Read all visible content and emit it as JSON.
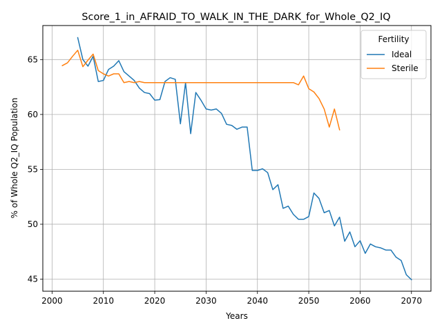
{
  "chart_data": {
    "type": "line",
    "title": "Score_1_in_AFRAID_TO_WALK_IN_THE_DARK_for_Whole_Q2_IQ",
    "xlabel": "Years",
    "ylabel": "% of Whole Q2_IQ Population",
    "xlim": [
      1998.2,
      2073.8
    ],
    "ylim": [
      43.9,
      68.1
    ],
    "xticks": [
      2000,
      2010,
      2020,
      2030,
      2040,
      2050,
      2060,
      2070
    ],
    "yticks": [
      45,
      50,
      55,
      60,
      65
    ],
    "grid": true,
    "legend": {
      "title": "Fertility",
      "placement": "top-right"
    },
    "series": [
      {
        "name": "Ideal",
        "color": "#1f77b4",
        "x": [
          2005,
          2006,
          2007,
          2008,
          2009,
          2010,
          2011,
          2012,
          2013,
          2014,
          2015,
          2016,
          2017,
          2018,
          2019,
          2020,
          2021,
          2022,
          2023,
          2024,
          2025,
          2026,
          2027,
          2028,
          2029,
          2030,
          2031,
          2032,
          2033,
          2034,
          2035,
          2036,
          2037,
          2038,
          2039,
          2040,
          2041,
          2042,
          2043,
          2044,
          2045,
          2046,
          2047,
          2048,
          2049,
          2050,
          2051,
          2052,
          2053,
          2054,
          2055,
          2056,
          2057,
          2058,
          2059,
          2060,
          2061,
          2062,
          2063,
          2064,
          2065,
          2066,
          2067,
          2068,
          2069,
          2070
        ],
        "values": [
          67.0,
          65.0,
          64.4,
          65.3,
          63.0,
          63.1,
          64.1,
          64.4,
          64.9,
          63.9,
          63.5,
          63.1,
          62.4,
          62.0,
          61.9,
          61.3,
          61.35,
          63.0,
          63.35,
          63.2,
          59.15,
          62.9,
          58.25,
          62.0,
          61.3,
          60.5,
          60.4,
          60.5,
          60.1,
          59.1,
          59.0,
          58.65,
          58.85,
          58.85,
          54.9,
          54.9,
          55.05,
          54.7,
          53.15,
          53.6,
          51.45,
          51.65,
          50.9,
          50.45,
          50.45,
          50.7,
          52.85,
          52.35,
          51.05,
          51.25,
          49.85,
          50.65,
          48.45,
          49.3,
          47.95,
          48.5,
          47.35,
          48.2,
          47.95,
          47.85,
          47.65,
          47.65,
          47.0,
          46.7,
          45.4,
          44.95
        ]
      },
      {
        "name": "Sterile",
        "color": "#ff7f0e",
        "x": [
          2002,
          2003,
          2004,
          2005,
          2006,
          2007,
          2008,
          2009,
          2010,
          2011,
          2012,
          2013,
          2014,
          2015,
          2016,
          2017,
          2018,
          2019,
          2020,
          2021,
          2022,
          2023,
          2024,
          2025,
          2026,
          2027,
          2028,
          2029,
          2030,
          2031,
          2032,
          2033,
          2034,
          2035,
          2036,
          2037,
          2038,
          2039,
          2040,
          2041,
          2042,
          2043,
          2044,
          2045,
          2046,
          2047,
          2048,
          2049,
          2050,
          2051,
          2052,
          2053,
          2054,
          2055,
          2056
        ],
        "values": [
          64.45,
          64.7,
          65.3,
          65.85,
          64.35,
          64.95,
          65.5,
          64.0,
          63.7,
          63.5,
          63.7,
          63.7,
          62.9,
          63.0,
          62.9,
          63.0,
          62.9,
          62.9,
          62.9,
          62.9,
          62.9,
          62.9,
          62.9,
          62.9,
          62.9,
          62.9,
          62.9,
          62.9,
          62.9,
          62.9,
          62.9,
          62.9,
          62.9,
          62.9,
          62.9,
          62.9,
          62.9,
          62.9,
          62.9,
          62.9,
          62.9,
          62.9,
          62.9,
          62.9,
          62.9,
          62.9,
          62.7,
          63.5,
          62.35,
          62.05,
          61.45,
          60.5,
          58.85,
          60.5,
          58.6
        ]
      }
    ]
  }
}
